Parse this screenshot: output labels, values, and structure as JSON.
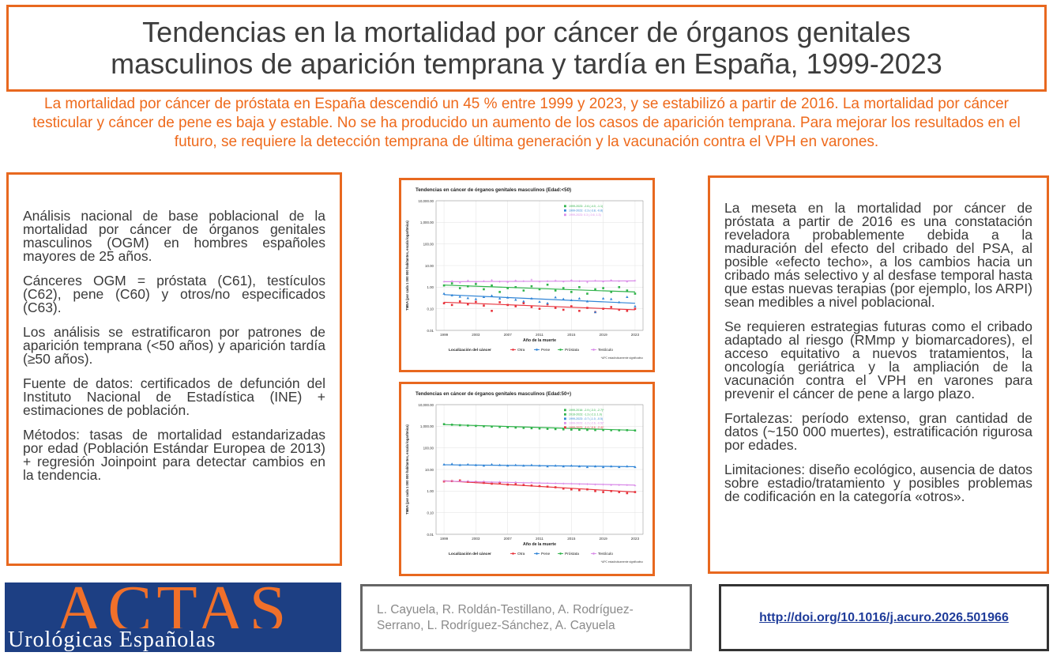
{
  "title": {
    "line1": "Tendencias en la mortalidad por cáncer de órganos genitales",
    "line2": "masculinos de aparición temprana y tardía en España, 1999-2023"
  },
  "summary": "La mortalidad por cáncer de próstata en España descendió un 45 % entre 1999 y 2023, y se estabilizó a partir de 2016. La mortalidad por cáncer testicular y cáncer de pene es baja y estable. No se ha producido un aumento de los casos de aparición temprana. Para mejorar los resultados en el futuro, se requiere la detección temprana de última generación y la vacunación contra el VPH en varones.",
  "left_panel": {
    "paragraphs": [
      "Análisis nacional de base poblacional de la mortalidad por cáncer de órganos genitales masculinos (OGM) en hombres españoles mayores de 25 años.",
      "Cánceres OGM = próstata (C61), testículos (C62), pene (C60) y otros/no especificados (C63).",
      "Los análisis se estratificaron por patrones de aparición temprana (<50 años) y aparición tardía (≥50 años).",
      "Fuente de datos: certificados de defunción del Instituto Nacional de Estadística (INE) + estimaciones de población.",
      "Métodos: tasas de mortalidad estandarizadas por edad (Población Estándar Europea de 2013) + regresión Joinpoint para detectar cambios en la tendencia."
    ]
  },
  "right_panel": {
    "paragraphs": [
      "La meseta en la mortalidad por cáncer de próstata a partir de 2016 es una constatación reveladora probablemente debida a la maduración del efecto del cribado del PSA, al posible «efecto techo», a los cambios hacia un cribado más selectivo y al desfase temporal hasta que estas nuevas terapias (por ejemplo, los ARPI) sean medibles a nivel poblacional.",
      "Se requieren estrategias futuras como el cribado adaptado al riesgo (RMmp y biomarcadores), el acceso equitativo a nuevos tratamientos, la oncología geriátrica y la ampliación de la vacunación contra el VPH en varones para prevenir el cáncer de pene a largo plazo.",
      "Fortalezas: período extenso, gran cantidad de datos (~150 000 muertes), estratificación rigurosa por edades.",
      "Limitaciones: diseño ecológico, ausencia de datos sobre estadio/tratamiento y posibles problemas de codificación en la categoría «otros»."
    ]
  },
  "charts": {
    "legend_title": "Localización del cáncer",
    "series_names": [
      "Otra",
      "Pene",
      "Próstata",
      "Testículo"
    ],
    "colors": {
      "Otra": "#e8333c",
      "Pene": "#2f84d6",
      "Próstata": "#2fb34a",
      "Testículo": "#d98be8"
    },
    "footnote": "*APC estadísticamente significativo"
  },
  "chart_data": [
    {
      "type": "scatter",
      "title": "Tendencias en cáncer de órganos genitales masculinos (Edad:<50)",
      "xlabel": "Año de la muerte",
      "ylabel": "TMEA (por cada 1 000 000 habitantes, escala logarítmica)",
      "log_scale": true,
      "ylim": [
        0.01,
        10000
      ],
      "y_ticks": [
        "0.01",
        "0.10",
        "1.00",
        "10.00",
        "100.00",
        "1,000.00",
        "10,000.00"
      ],
      "x_ticks": [
        "1999",
        "2003",
        "2007",
        "2011",
        "2015",
        "2019",
        "2023"
      ],
      "legend_position": "top-right",
      "legend_entries": [
        {
          "series": "Próstata",
          "text": "1999-2023: -2.6 (-4.0, -1.1)"
        },
        {
          "series": "Pene",
          "text": "1999-2023: -2.3 (-3.8, -0.8)"
        },
        {
          "series": "Testículo",
          "text": "1999-2023: 0.3 (-0.6, 1.3)"
        }
      ],
      "x": [
        1999,
        2000,
        2001,
        2002,
        2003,
        2004,
        2005,
        2006,
        2007,
        2008,
        2009,
        2010,
        2011,
        2012,
        2013,
        2014,
        2015,
        2016,
        2017,
        2018,
        2019,
        2020,
        2021,
        2022,
        2023
      ],
      "series": [
        {
          "name": "Otra",
          "values": [
            0.18,
            0.15,
            0.22,
            0.16,
            0.21,
            0.14,
            0.08,
            0.2,
            0.15,
            0.13,
            0.18,
            0.12,
            0.1,
            0.16,
            0.11,
            0.09,
            0.13,
            0.08,
            0.11,
            0.07,
            0.1,
            0.12,
            0.09,
            0.08,
            0.1
          ]
        },
        {
          "name": "Pene",
          "values": [
            0.5,
            0.42,
            0.36,
            0.31,
            0.28,
            0.35,
            0.4,
            0.3,
            0.33,
            0.26,
            0.22,
            0.3,
            0.21,
            0.18,
            0.34,
            0.28,
            0.25,
            0.3,
            0.22,
            0.07,
            0.3,
            0.28,
            0.2,
            0.35,
            0.13
          ]
        },
        {
          "name": "Próstata",
          "values": [
            1.2,
            1.5,
            0.9,
            1.1,
            1.4,
            0.8,
            1.2,
            0.6,
            0.9,
            1.0,
            0.7,
            1.1,
            0.8,
            1.3,
            0.7,
            0.9,
            0.6,
            1.0,
            0.5,
            0.8,
            0.9,
            0.6,
            1.0,
            0.7,
            0.5
          ]
        },
        {
          "name": "Testículo",
          "values": [
            1.8,
            1.9,
            1.6,
            2.0,
            1.7,
            1.9,
            2.1,
            1.8,
            1.7,
            2.0,
            1.9,
            2.2,
            1.8,
            1.9,
            2.0,
            1.8,
            2.1,
            1.9,
            1.7,
            2.0,
            1.8,
            2.1,
            1.9,
            1.8,
            2.0
          ]
        }
      ],
      "trends": [
        {
          "name": "Otra",
          "start": 0.2,
          "end": 0.09
        },
        {
          "name": "Pene",
          "start": 0.45,
          "end": 0.18
        },
        {
          "name": "Próstata",
          "start": 1.25,
          "end": 0.6
        },
        {
          "name": "Testículo",
          "start": 1.8,
          "end": 1.95
        }
      ]
    },
    {
      "type": "scatter",
      "title": "Tendencias en cáncer de órganos genitales masculinos (Edad:50+)",
      "xlabel": "Año de la muerte",
      "ylabel": "TMEA (por cada 1 000 000 habitantes, escala logarítmica)",
      "log_scale": true,
      "ylim": [
        0.01,
        10000
      ],
      "y_ticks": [
        "0.01",
        "0.10",
        "1.00",
        "10.00",
        "100.00",
        "1,000.00",
        "10,000.00"
      ],
      "x_ticks": [
        "1999",
        "2003",
        "2007",
        "2011",
        "2015",
        "2019",
        "2023"
      ],
      "legend_position": "top-right",
      "legend_entries": [
        {
          "series": "Próstata",
          "text": "1999-2016: -2.9 (-3.0, -2.7)*"
        },
        {
          "series": "Próstata",
          "text": "2016-2023: -1.3 (-2.3, 1.0)"
        },
        {
          "series": "Pene",
          "text": "1999-2023: -0.7 (-1.0, -0.5)"
        },
        {
          "series": "Testículo",
          "text": "1999-2023: -1.2 (-2.6, -0.5)*"
        },
        {
          "series": "Otra",
          "text": "1999-2023: -4.4 (-6.6, -2.4)*"
        }
      ],
      "x": [
        1999,
        2000,
        2001,
        2002,
        2003,
        2004,
        2005,
        2006,
        2007,
        2008,
        2009,
        2010,
        2011,
        2012,
        2013,
        2014,
        2015,
        2016,
        2017,
        2018,
        2019,
        2020,
        2021,
        2022,
        2023
      ],
      "series": [
        {
          "name": "Otra",
          "values": [
            2.8,
            2.9,
            3.1,
            2.7,
            2.6,
            2.4,
            2.2,
            2.3,
            2.0,
            2.1,
            1.9,
            1.8,
            1.7,
            1.6,
            1.5,
            1.3,
            1.2,
            1.1,
            1.2,
            1.0,
            0.9,
            1.0,
            0.9,
            0.8,
            0.9
          ]
        },
        {
          "name": "Pene",
          "values": [
            17,
            18,
            16,
            17,
            16,
            15,
            17,
            16,
            15,
            16,
            15,
            16,
            15,
            14,
            15,
            14,
            15,
            14,
            13,
            14,
            13,
            14,
            13,
            14,
            13
          ]
        },
        {
          "name": "Próstata",
          "values": [
            1250,
            1180,
            1120,
            1080,
            1040,
            1000,
            960,
            930,
            900,
            870,
            840,
            810,
            790,
            760,
            740,
            720,
            700,
            690,
            680,
            670,
            670,
            660,
            650,
            660,
            640
          ]
        },
        {
          "name": "Testículo",
          "values": [
            3.0,
            2.9,
            2.8,
            2.9,
            2.7,
            2.8,
            2.6,
            2.7,
            2.5,
            2.6,
            2.4,
            2.5,
            2.4,
            2.3,
            2.3,
            2.2,
            2.2,
            2.1,
            2.1,
            2.0,
            2.0,
            1.9,
            1.9,
            1.9,
            1.8
          ]
        }
      ],
      "trends": [
        {
          "name": "Otra",
          "start": 3.0,
          "end": 0.9
        },
        {
          "name": "Pene",
          "start": 16.5,
          "end": 13.5
        },
        {
          "name": "Próstata",
          "start": 1200,
          "end": 650
        },
        {
          "name": "Testículo",
          "start": 2.9,
          "end": 1.9
        }
      ]
    }
  ],
  "logo": {
    "big": "ACTAS",
    "small": "Urológicas Españolas"
  },
  "authors": "L. Cayuela, R. Roldán-Testillano, A. Rodríguez-Serrano, L. Rodríguez-Sánchez, A. Cayuela",
  "doi": "http://doi.org/10.1016/j.acuro.2026.501966"
}
